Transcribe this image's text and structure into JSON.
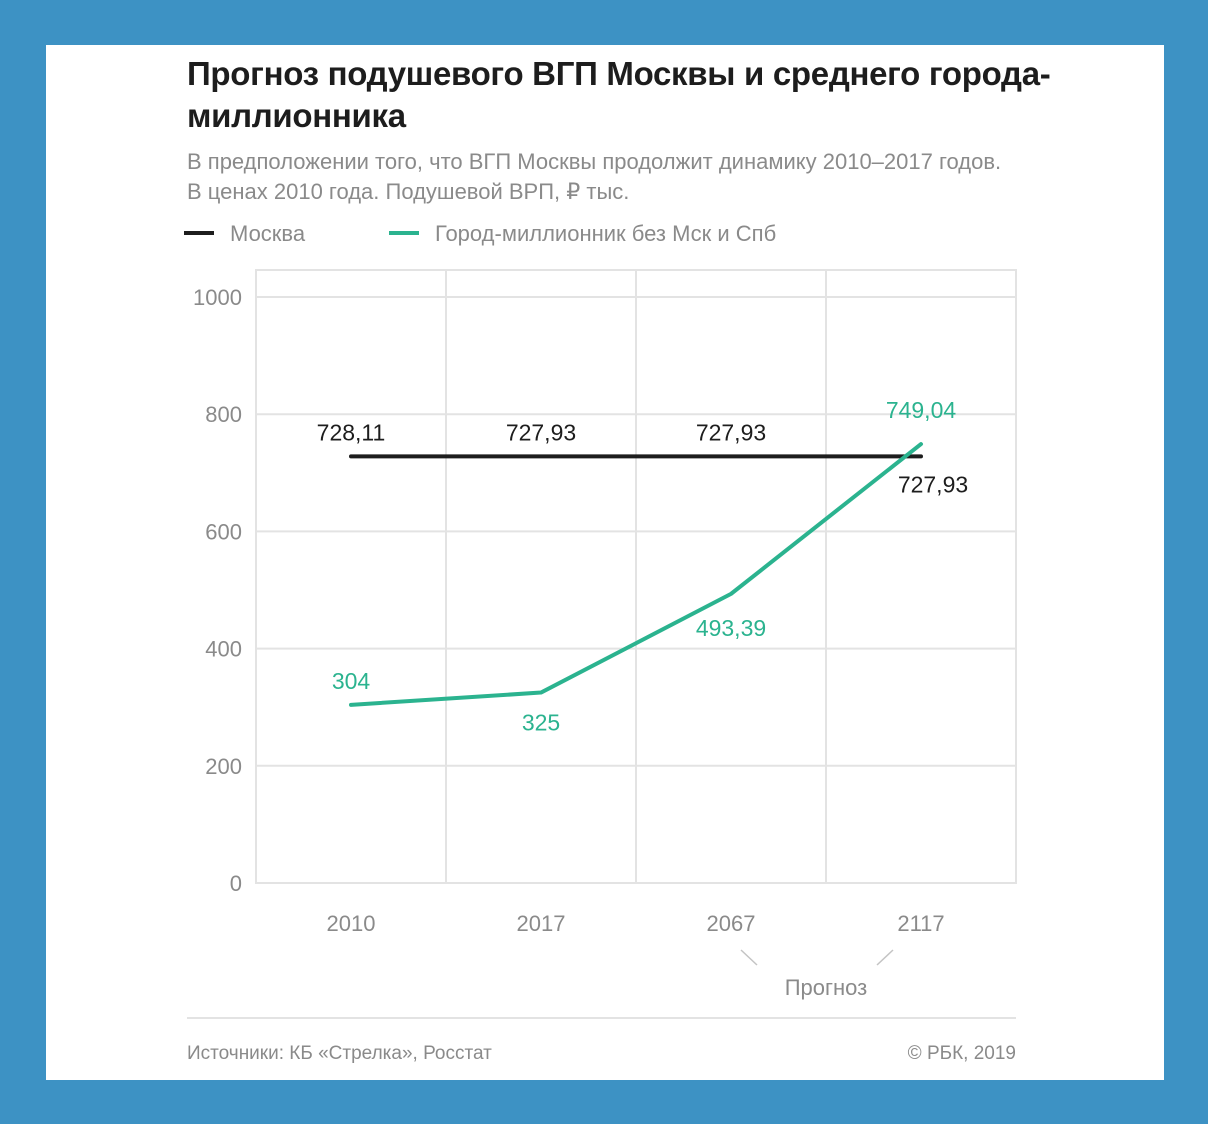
{
  "title": "Прогноз подушевого ВГП Москвы и среднего города-миллионника",
  "subtitle": "В предположении того, что ВГП Москвы продолжит динамику 2010–2017 годов. В ценах 2010 года. Подушевой ВРП, ₽ тыс.",
  "source": "Источники: КБ «Стрелка», Росстат",
  "copyright": "© РБК, 2019",
  "colors": {
    "background": "#3d92c4",
    "moscow": "#1d1d1d",
    "city": "#2bb38f",
    "grid": "#e3e3e3",
    "axis_text": "#8a8a8a"
  },
  "chart_data": {
    "type": "line",
    "categories": [
      "2010",
      "2017",
      "2067",
      "2117"
    ],
    "ylim": [
      0,
      1000
    ],
    "yticks": [
      0,
      200,
      400,
      600,
      800,
      1000
    ],
    "grid": true,
    "legend_position": "top-left",
    "forecast_label": "Прогноз",
    "series": [
      {
        "name": "Москва",
        "color": "#1d1d1d",
        "values": [
          728.11,
          727.93,
          727.93,
          727.93
        ],
        "labels": [
          "728,11",
          "727,93",
          "727,93",
          "727,93"
        ]
      },
      {
        "name": "Город-миллионник без Мск и Спб",
        "color": "#2bb38f",
        "values": [
          304,
          325,
          493.39,
          749.04
        ],
        "labels": [
          "304",
          "325",
          "493,39",
          "749,04"
        ]
      }
    ]
  }
}
